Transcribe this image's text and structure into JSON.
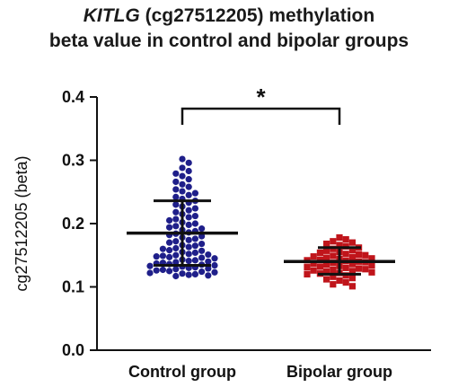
{
  "title": {
    "gene": "KITLG",
    "line1_rest": " (cg27512205) methylation",
    "line2": "beta value in control and bipolar groups"
  },
  "chart_data": {
    "type": "scatter",
    "ylabel": "cg27512205 (beta)",
    "ylim": [
      0.0,
      0.4
    ],
    "yticks": [
      "0.0",
      "0.1",
      "0.2",
      "0.3",
      "0.4"
    ],
    "categories": [
      "Control group",
      "Bipolar group"
    ],
    "significance": {
      "label": "*",
      "between": [
        "Control group",
        "Bipolar group"
      ]
    },
    "series": [
      {
        "color": "#1f1f8a",
        "marker": "circle",
        "mean": 0.185,
        "sd_upper": 0.236,
        "sd_lower": 0.134,
        "values": [
          0.302,
          0.296,
          0.288,
          0.283,
          0.279,
          0.275,
          0.27,
          0.266,
          0.262,
          0.258,
          0.254,
          0.251,
          0.248,
          0.245,
          0.242,
          0.239,
          0.236,
          0.233,
          0.23,
          0.227,
          0.224,
          0.221,
          0.218,
          0.215,
          0.212,
          0.21,
          0.207,
          0.205,
          0.202,
          0.2,
          0.198,
          0.196,
          0.194,
          0.192,
          0.19,
          0.188,
          0.186,
          0.184,
          0.182,
          0.18,
          0.178,
          0.176,
          0.174,
          0.172,
          0.17,
          0.168,
          0.166,
          0.165,
          0.163,
          0.161,
          0.16,
          0.158,
          0.157,
          0.155,
          0.154,
          0.152,
          0.151,
          0.149,
          0.148,
          0.146,
          0.145,
          0.143,
          0.142,
          0.14,
          0.139,
          0.137,
          0.136,
          0.135,
          0.133,
          0.132,
          0.131,
          0.129,
          0.128,
          0.127,
          0.125,
          0.124,
          0.123,
          0.121,
          0.12,
          0.118,
          0.117,
          0.15,
          0.147,
          0.141,
          0.138,
          0.134,
          0.13,
          0.126,
          0.122,
          0.119
        ]
      },
      {
        "color": "#c0151b",
        "marker": "square",
        "mean": 0.14,
        "sd_upper": 0.162,
        "sd_lower": 0.12,
        "values": [
          0.178,
          0.175,
          0.172,
          0.17,
          0.168,
          0.166,
          0.164,
          0.162,
          0.16,
          0.158,
          0.157,
          0.155,
          0.154,
          0.152,
          0.151,
          0.15,
          0.149,
          0.148,
          0.147,
          0.146,
          0.145,
          0.144,
          0.143,
          0.142,
          0.141,
          0.14,
          0.139,
          0.138,
          0.137,
          0.136,
          0.135,
          0.134,
          0.133,
          0.132,
          0.131,
          0.13,
          0.129,
          0.128,
          0.127,
          0.126,
          0.125,
          0.124,
          0.123,
          0.122,
          0.121,
          0.12,
          0.118,
          0.116,
          0.114,
          0.112,
          0.11,
          0.107,
          0.104,
          0.101
        ]
      }
    ]
  }
}
